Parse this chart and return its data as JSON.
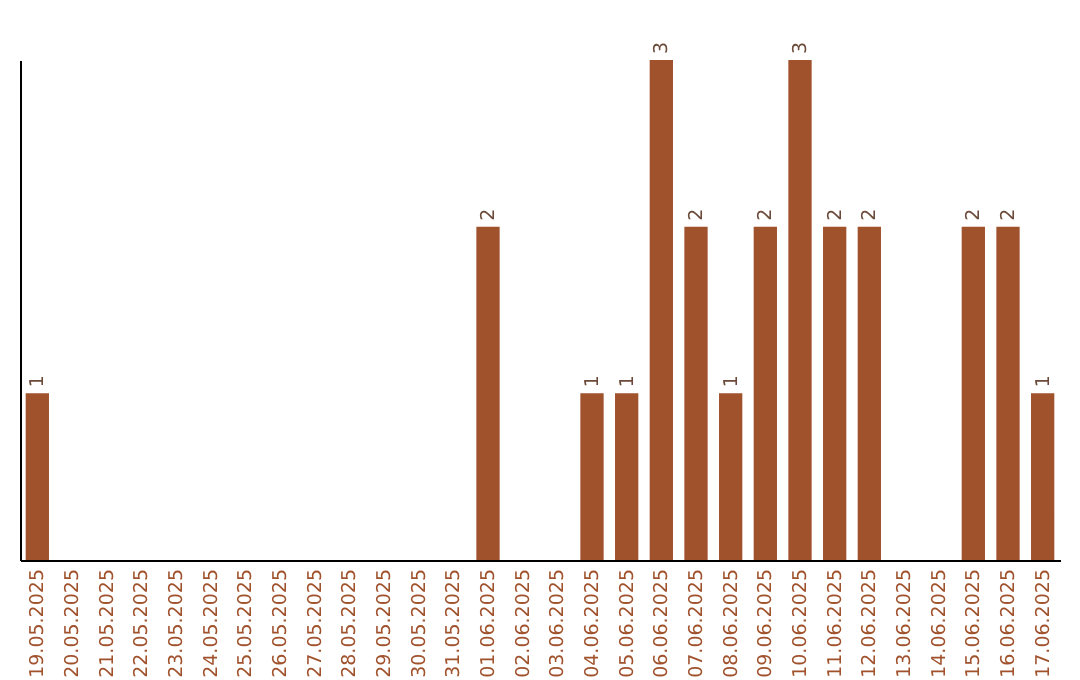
{
  "chart_data": {
    "type": "bar",
    "categories": [
      "19.05.2025",
      "20.05.2025",
      "21.05.2025",
      "22.05.2025",
      "23.05.2025",
      "24.05.2025",
      "25.05.2025",
      "26.05.2025",
      "27.05.2025",
      "28.05.2025",
      "29.05.2025",
      "30.05.2025",
      "31.05.2025",
      "01.06.2025",
      "02.06.2025",
      "03.06.2025",
      "04.06.2025",
      "05.06.2025",
      "06.06.2025",
      "07.06.2025",
      "08.06.2025",
      "09.06.2025",
      "10.06.2025",
      "11.06.2025",
      "12.06.2025",
      "13.06.2025",
      "14.06.2025",
      "15.06.2025",
      "16.06.2025",
      "17.06.2025"
    ],
    "values": [
      1,
      0,
      0,
      0,
      0,
      0,
      0,
      0,
      0,
      0,
      0,
      0,
      0,
      2,
      0,
      0,
      1,
      1,
      3,
      2,
      1,
      2,
      3,
      2,
      2,
      0,
      0,
      2,
      2,
      1
    ],
    "value_labels": [
      "1",
      null,
      null,
      null,
      null,
      null,
      null,
      null,
      null,
      null,
      null,
      null,
      null,
      "2",
      null,
      null,
      "1",
      "1",
      "3",
      "2",
      "1",
      "2",
      "3",
      "2",
      "2",
      null,
      null,
      "2",
      "2",
      "1"
    ],
    "color": "#a0522d",
    "tick_labels": "x",
    "grid": false
  }
}
